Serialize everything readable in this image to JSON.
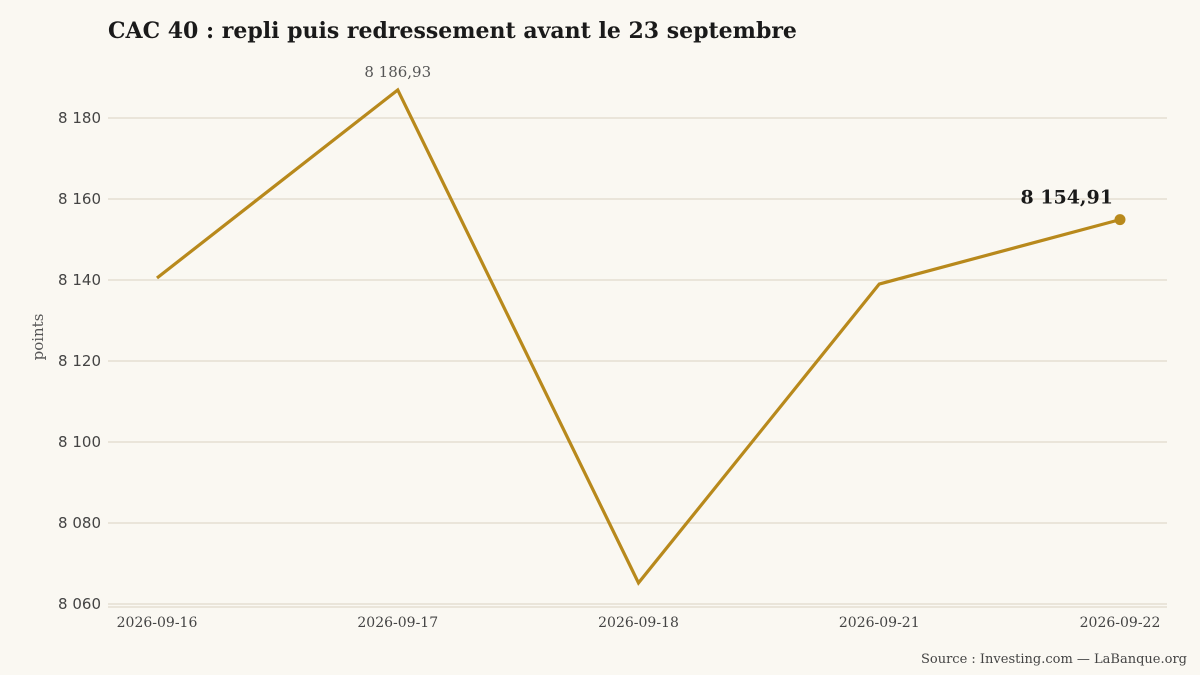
{
  "title": "CAC 40 : repli puis redressement avant le 23 septembre",
  "source": "Source : Investing.com — LaBanque.org",
  "colors": {
    "background": "#faf8f2",
    "line": "#b8891c",
    "grid": "#d9d2c3"
  },
  "chart_data": {
    "type": "line",
    "title": "CAC 40 : repli puis redressement avant le 23 septembre",
    "xlabel": "",
    "ylabel": "points",
    "categories": [
      "2026-09-16",
      "2026-09-17",
      "2026-09-18",
      "2026-09-21",
      "2026-09-22"
    ],
    "series": [
      {
        "values": [
          8140.5,
          8186.93,
          8065.2,
          8139.0,
          8154.91
        ]
      }
    ],
    "y_ticks": [
      8060,
      8080,
      8100,
      8120,
      8140,
      8160,
      8180
    ],
    "y_tick_labels": [
      "8 060",
      "8 080",
      "8 100",
      "8 120",
      "8 140",
      "8 160",
      "8 180"
    ],
    "ylim": [
      8058,
      8198
    ],
    "grid": true,
    "annotations": [
      {
        "x": "2026-09-17",
        "y": 8186.93,
        "text": "8 186,93",
        "style": "peak"
      },
      {
        "x": "2026-09-22",
        "y": 8154.91,
        "text": "8 154,91",
        "style": "last"
      }
    ]
  }
}
